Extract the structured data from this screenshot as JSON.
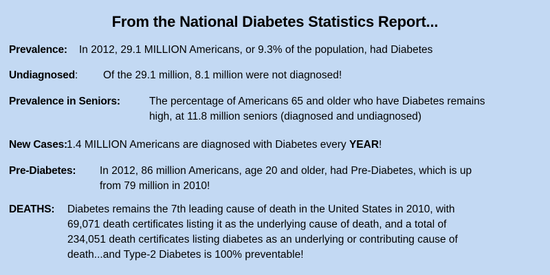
{
  "page": {
    "background_color": "#c3d9f3",
    "text_color": "#000000"
  },
  "title": "From the National Diabetes Statistics Report...",
  "sections": [
    {
      "label": "Prevalence:",
      "text": "In 2012, 29.1 MILLION Americans, or 9.3% of the population, had Diabetes"
    },
    {
      "label": "Undiagnosed",
      "colon": ":",
      "text": "Of the 29.1 million, 8.1 million were not diagnosed!"
    },
    {
      "label": "Prevalence in Seniors:",
      "text": "The percentage of Americans 65 and older who have Diabetes remains\nhigh, at 11.8 million seniors (diagnosed and undiagnosed)"
    },
    {
      "label": "New Cases:",
      "text": "1.4 MILLION Americans are diagnosed with Diabetes every ",
      "strong": "YEAR",
      "end": "!"
    },
    {
      "label": "Pre-Diabetes:",
      "text": "In 2012, 86 million Americans, age 20 and older, had Pre-Diabetes, which is up\nfrom 79 million in 2010!"
    },
    {
      "label": "DEATHS:",
      "text": "Diabetes remains the 7th leading cause of death in the United States in 2010, with\n69,071 death certificates listing it as the underlying cause of death, and a total of\n234,051 death certificates listing diabetes as an underlying or contributing cause of\ndeath...and Type-2 Diabetes is 100% preventable!"
    }
  ]
}
